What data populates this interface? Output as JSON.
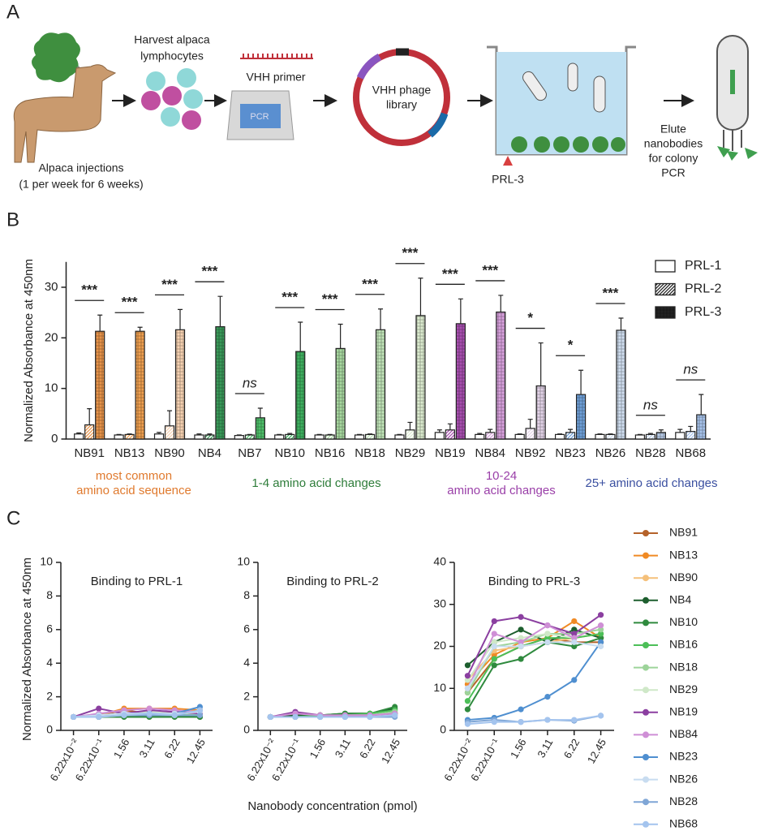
{
  "panel_labels": [
    "A",
    "B",
    "C"
  ],
  "diagram": {
    "harvest": [
      "Harvest alpaca",
      "lymphocytes"
    ],
    "primer": "VHH primer",
    "pcr": "PCR",
    "library": [
      "VHH phage",
      "library"
    ],
    "injections": [
      "Alpaca injections",
      "(1 per week for 6 weeks)"
    ],
    "target": "PRL-3",
    "elute": [
      "Elute",
      "nanobodies",
      "for colony",
      "PCR"
    ]
  },
  "chart_data": [
    {
      "type": "bar",
      "y_label": "Normalized Absorbance at 450nm",
      "categories": [
        "NB91",
        "NB13",
        "NB90",
        "NB4",
        "NB7",
        "NB10",
        "NB16",
        "NB18",
        "NB29",
        "NB19",
        "NB84",
        "NB92",
        "NB23",
        "NB26",
        "NB28",
        "NB68"
      ],
      "bar_colors": [
        "#e8944a",
        "#f0a050",
        "#f6d2b2",
        "#3a9a5a",
        "#4fbf6a",
        "#3fb060",
        "#a8d8a0",
        "#c0e4b8",
        "#dcecd0",
        "#a84fb0",
        "#d7a0dc",
        "#e3d4e8",
        "#6fa0d8",
        "#d0def0",
        "#b7cbe6",
        "#a8c4ec"
      ],
      "ylim": [
        0,
        35
      ],
      "yticks": [
        0,
        10,
        20,
        30
      ],
      "series": [
        {
          "name": "PRL-1",
          "pattern": "none",
          "values": [
            1.0,
            0.8,
            1.0,
            0.8,
            0.7,
            0.8,
            0.8,
            0.8,
            0.8,
            1.3,
            0.9,
            0.9,
            0.9,
            0.9,
            0.8,
            1.3
          ],
          "errors": [
            0.2,
            0.1,
            0.3,
            0.2,
            0.1,
            0.1,
            0.1,
            0.1,
            0.1,
            0.5,
            0.2,
            0.1,
            0.1,
            0.1,
            0.1,
            0.6
          ]
        },
        {
          "name": "PRL-2",
          "pattern": "hatch",
          "values": [
            2.8,
            0.9,
            2.6,
            0.8,
            0.8,
            0.9,
            0.8,
            0.9,
            1.8,
            1.8,
            1.3,
            2.1,
            1.3,
            0.9,
            0.9,
            1.5
          ],
          "errors": [
            3.2,
            0.1,
            3.0,
            0.2,
            0.1,
            0.2,
            0.1,
            0.1,
            1.5,
            1.2,
            0.6,
            1.8,
            0.6,
            0.1,
            0.2,
            1.0
          ]
        },
        {
          "name": "PRL-3",
          "pattern": "crosshatch",
          "values": [
            21.3,
            21.3,
            21.6,
            22.2,
            4.2,
            17.3,
            17.9,
            21.6,
            24.4,
            22.8,
            25.1,
            10.5,
            8.8,
            21.5,
            1.3,
            4.8
          ],
          "errors": [
            3.2,
            0.8,
            4.0,
            6.0,
            1.9,
            5.8,
            4.8,
            4.1,
            7.4,
            4.9,
            3.3,
            8.5,
            4.8,
            2.4,
            0.5,
            4.0
          ]
        }
      ],
      "significance": [
        "***",
        "***",
        "***",
        "***",
        "ns",
        "***",
        "***",
        "***",
        "***",
        "***",
        "***",
        "*",
        "*",
        "***",
        "ns",
        "ns"
      ],
      "groups": [
        {
          "lines": [
            "most common",
            "amino acid sequence"
          ],
          "color": "#e07a2e"
        },
        {
          "lines": [
            "1-4 amino acid changes"
          ],
          "color": "#2e7d3a"
        },
        {
          "lines": [
            "10-24",
            "amino acid changes"
          ],
          "color": "#9a3fa8"
        },
        {
          "lines": [
            "25+ amino acid changes"
          ],
          "color": "#3a4fa0"
        }
      ]
    },
    {
      "type": "line",
      "title": "Binding to PRL-1",
      "y_label": "Normalized Absorbance at 450nm",
      "categories": [
        "6.22x10⁻²",
        "6.22x10⁻¹",
        "1.56",
        "3.11",
        "6.22",
        "12.45"
      ],
      "ylim": [
        0,
        10
      ],
      "yticks": [
        0,
        2,
        4,
        6,
        8,
        10
      ],
      "series": [
        {
          "color": "#b5622a",
          "values": [
            0.8,
            0.9,
            1.2,
            1.0,
            1.1,
            1.0
          ]
        },
        {
          "color": "#f08a24",
          "values": [
            0.8,
            0.9,
            1.3,
            1.3,
            1.3,
            1.2
          ]
        },
        {
          "color": "#f5c07a",
          "values": [
            0.8,
            0.9,
            1.0,
            0.8,
            0.9,
            1.0
          ]
        },
        {
          "color": "#1d5e2e",
          "values": [
            0.8,
            0.8,
            0.9,
            0.9,
            0.9,
            0.8
          ]
        },
        {
          "color": "#2f8a3e",
          "values": [
            0.8,
            0.8,
            0.8,
            0.8,
            0.8,
            0.8
          ]
        },
        {
          "color": "#4cbf58",
          "values": [
            0.8,
            0.9,
            0.9,
            1.0,
            0.9,
            1.0
          ]
        },
        {
          "color": "#9dd49a",
          "values": [
            0.8,
            0.9,
            1.0,
            1.0,
            1.0,
            1.1
          ]
        },
        {
          "color": "#cfe8c8",
          "values": [
            0.8,
            0.9,
            1.0,
            1.1,
            1.0,
            1.0
          ]
        },
        {
          "color": "#8b3fa0",
          "values": [
            0.8,
            1.3,
            1.0,
            1.2,
            1.1,
            1.0
          ]
        },
        {
          "color": "#cf8fd6",
          "values": [
            0.8,
            1.0,
            1.2,
            1.3,
            1.2,
            1.1
          ]
        },
        {
          "color": "#4f8fd0",
          "values": [
            0.8,
            0.9,
            1.0,
            1.0,
            1.0,
            1.4
          ]
        },
        {
          "color": "#c8dcf0",
          "values": [
            0.8,
            0.9,
            1.0,
            1.0,
            1.0,
            1.1
          ]
        },
        {
          "color": "#7fa6d6",
          "values": [
            0.8,
            0.8,
            0.9,
            0.9,
            0.9,
            0.9
          ]
        },
        {
          "color": "#a4c4ee",
          "values": [
            0.8,
            0.8,
            0.9,
            1.0,
            0.9,
            1.2
          ]
        }
      ]
    },
    {
      "type": "line",
      "title": "Binding to PRL-2",
      "x_label": "Nanobody concentration (pmol)",
      "categories": [
        "6.22x10⁻²",
        "6.22x10⁻¹",
        "1.56",
        "3.11",
        "6.22",
        "12.45"
      ],
      "ylim": [
        0,
        10
      ],
      "yticks": [
        0,
        2,
        4,
        6,
        8,
        10
      ],
      "series": [
        {
          "color": "#b5622a",
          "values": [
            0.8,
            0.9,
            0.9,
            0.9,
            0.9,
            1.0
          ]
        },
        {
          "color": "#f08a24",
          "values": [
            0.8,
            0.8,
            0.9,
            0.9,
            0.9,
            1.0
          ]
        },
        {
          "color": "#f5c07a",
          "values": [
            0.8,
            0.8,
            0.8,
            0.8,
            0.9,
            0.9
          ]
        },
        {
          "color": "#1d5e2e",
          "values": [
            0.8,
            0.9,
            0.9,
            1.0,
            1.0,
            1.3
          ]
        },
        {
          "color": "#2f8a3e",
          "values": [
            0.8,
            0.8,
            0.9,
            1.0,
            1.0,
            1.4
          ]
        },
        {
          "color": "#4cbf58",
          "values": [
            0.8,
            0.8,
            0.9,
            0.9,
            1.0,
            1.2
          ]
        },
        {
          "color": "#9dd49a",
          "values": [
            0.8,
            0.8,
            0.8,
            0.9,
            0.9,
            1.1
          ]
        },
        {
          "color": "#cfe8c8",
          "values": [
            0.8,
            0.8,
            0.8,
            0.9,
            0.9,
            1.0
          ]
        },
        {
          "color": "#8b3fa0",
          "values": [
            0.8,
            1.1,
            0.9,
            0.9,
            0.9,
            1.0
          ]
        },
        {
          "color": "#cf8fd6",
          "values": [
            0.8,
            1.0,
            0.9,
            0.9,
            0.9,
            1.0
          ]
        },
        {
          "color": "#4f8fd0",
          "values": [
            0.8,
            0.8,
            0.8,
            0.8,
            0.8,
            0.9
          ]
        },
        {
          "color": "#c8dcf0",
          "values": [
            0.8,
            0.8,
            0.8,
            0.8,
            0.8,
            0.9
          ]
        },
        {
          "color": "#7fa6d6",
          "values": [
            0.8,
            0.8,
            0.8,
            0.8,
            0.8,
            0.8
          ]
        },
        {
          "color": "#a4c4ee",
          "values": [
            0.8,
            0.8,
            0.8,
            0.8,
            0.8,
            0.9
          ]
        }
      ]
    },
    {
      "type": "line",
      "title": "Binding to PRL-3",
      "categories": [
        "6.22x10⁻²",
        "6.22x10⁻¹",
        "1.56",
        "3.11",
        "6.22",
        "12.45"
      ],
      "ylim": [
        0,
        40
      ],
      "yticks": [
        0,
        10,
        20,
        30,
        40
      ],
      "series": [
        {
          "name": "NB91",
          "color": "#b5622a",
          "values": [
            9,
            17,
            20,
            22,
            21,
            21
          ]
        },
        {
          "name": "NB13",
          "color": "#f08a24",
          "values": [
            11,
            18,
            21,
            22,
            26,
            22
          ]
        },
        {
          "name": "NB90",
          "color": "#f5c07a",
          "values": [
            12,
            19,
            20,
            21,
            22,
            23
          ]
        },
        {
          "name": "NB4",
          "color": "#1d5e2e",
          "values": [
            15.5,
            21,
            24,
            21,
            24,
            22
          ]
        },
        {
          "name": "NB10",
          "color": "#2f8a3e",
          "values": [
            5,
            15.5,
            17,
            21,
            20,
            22
          ]
        },
        {
          "name": "NB16",
          "color": "#4cbf58",
          "values": [
            7,
            17,
            20,
            22,
            22,
            23
          ]
        },
        {
          "name": "NB18",
          "color": "#9dd49a",
          "values": [
            9,
            20,
            21,
            23,
            23,
            24
          ]
        },
        {
          "name": "NB29",
          "color": "#cfe8c8",
          "values": [
            12,
            21,
            22,
            23,
            22,
            25
          ]
        },
        {
          "name": "NB19",
          "color": "#8b3fa0",
          "values": [
            13,
            26,
            27,
            25,
            23,
            27.5
          ]
        },
        {
          "name": "NB84",
          "color": "#cf8fd6",
          "values": [
            10,
            23,
            21,
            25,
            22,
            25
          ]
        },
        {
          "name": "NB23",
          "color": "#4f8fd0",
          "values": [
            2.5,
            3,
            5,
            8,
            12,
            21
          ]
        },
        {
          "name": "NB26",
          "color": "#c8dcf0",
          "values": [
            10,
            20,
            20,
            21,
            21,
            20
          ]
        },
        {
          "name": "NB28",
          "color": "#7fa6d6",
          "values": [
            2,
            2.5,
            2,
            2.5,
            2.3,
            3.5
          ]
        },
        {
          "name": "NB68",
          "color": "#a4c4ee",
          "values": [
            1.5,
            2,
            2,
            2.5,
            2.5,
            3.5
          ]
        }
      ]
    }
  ]
}
